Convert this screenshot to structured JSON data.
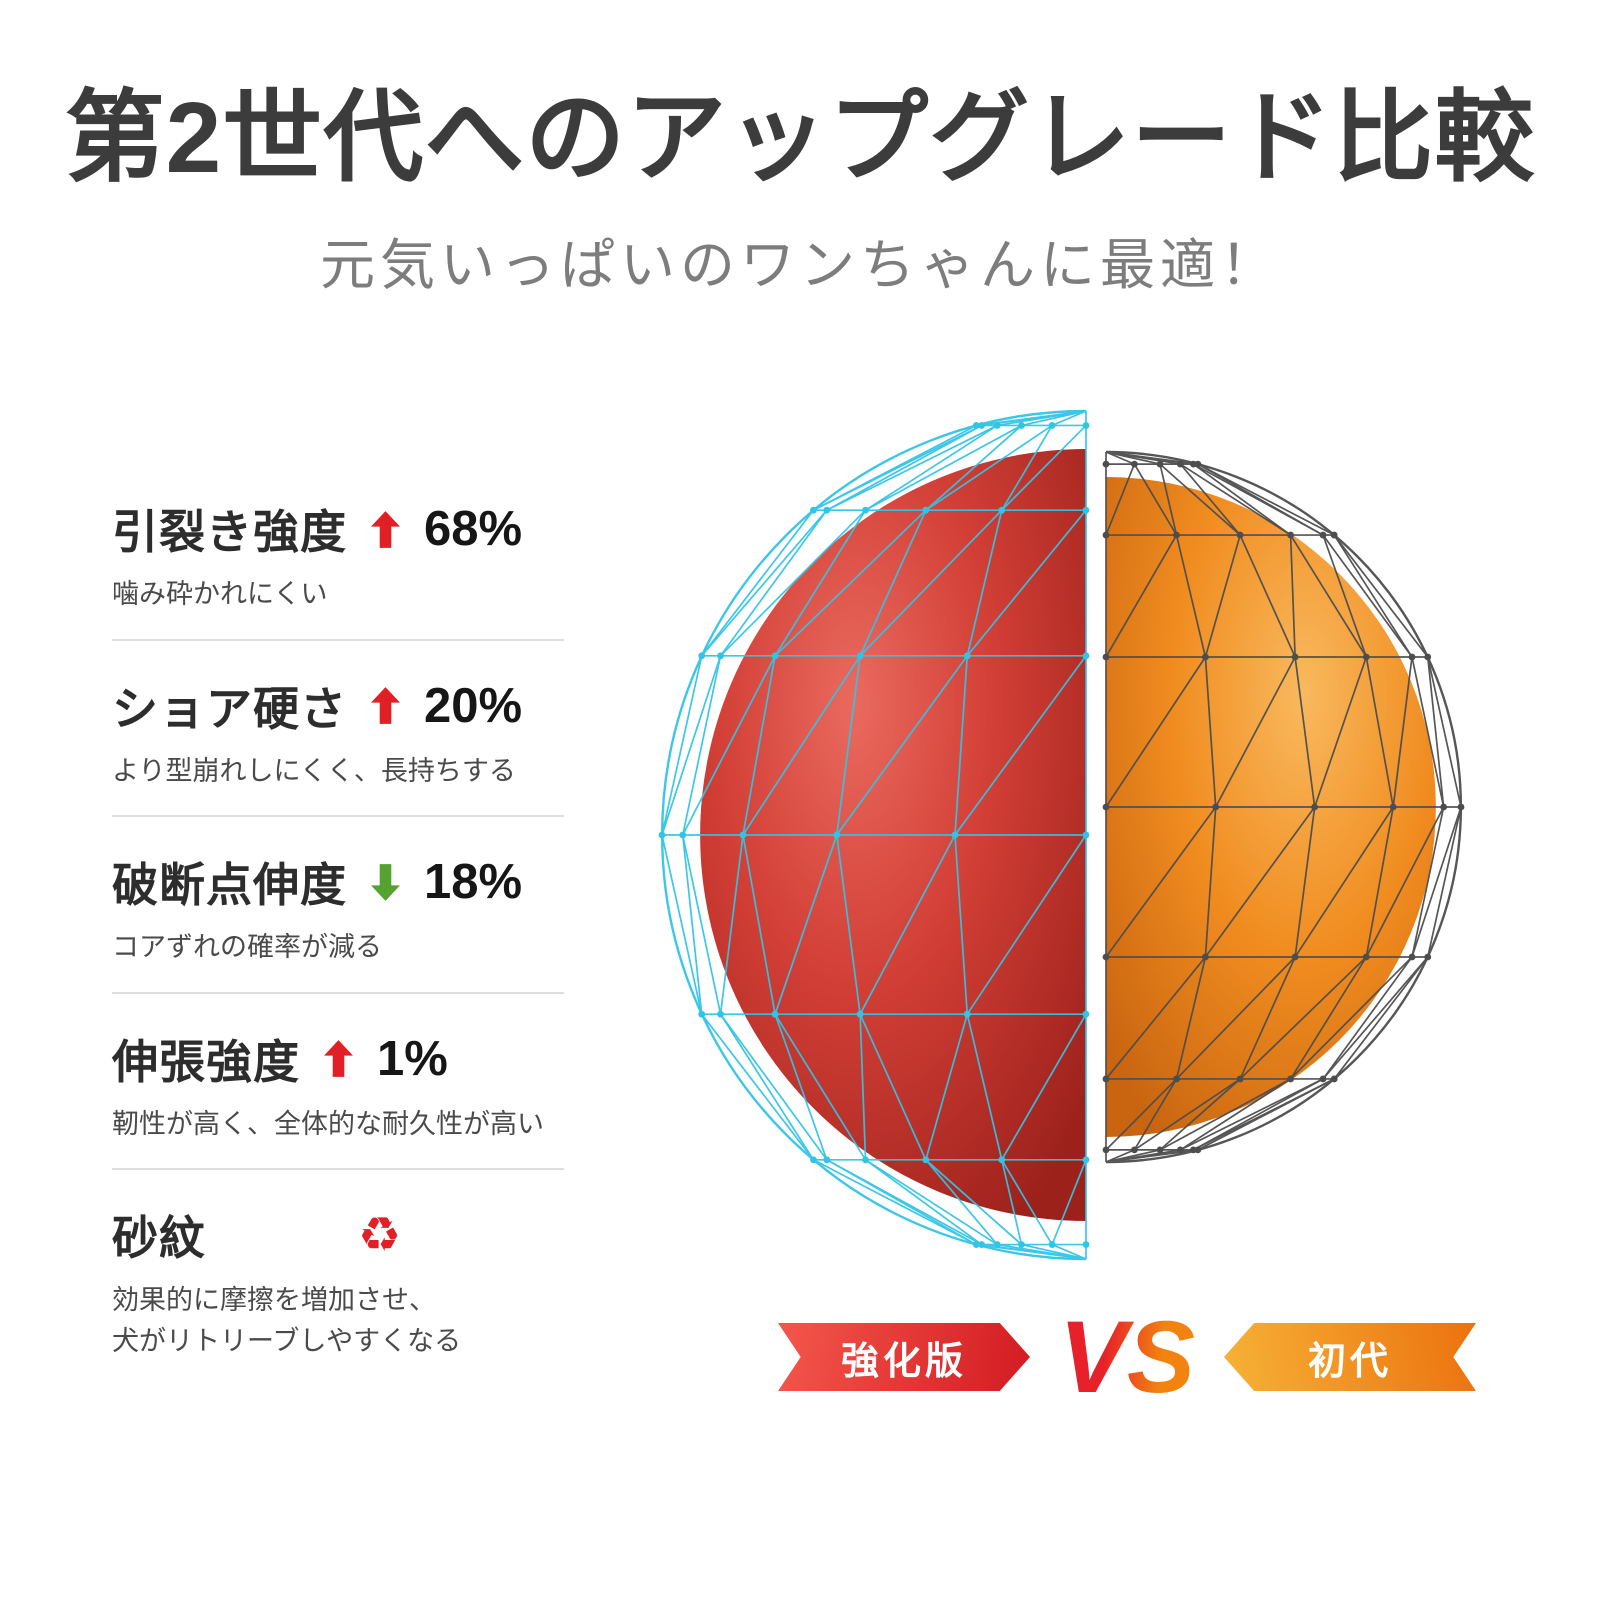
{
  "header": {
    "title": "第2世代へのアップグレード比較",
    "subtitle": "元気いっぱいのワンちゃんに最適！"
  },
  "specs": [
    {
      "label": "引裂き強度",
      "trend": "up",
      "value": "68%",
      "desc": "噛み砕かれにくい"
    },
    {
      "label": "ショア硬さ",
      "trend": "up",
      "value": "20%",
      "desc": "より型崩れしにくく、長持ちする"
    },
    {
      "label": "破断点伸度",
      "trend": "down",
      "value": "18%",
      "desc": "コアずれの確率が減る"
    },
    {
      "label": "伸張強度",
      "trend": "up",
      "value": "1%",
      "desc": "靭性が高く、全体的な耐久性が高い"
    },
    {
      "label": "砂紋",
      "trend": "recycle",
      "value": "",
      "desc": "効果的に摩擦を増加させ、\n犬がリトリーブしやすくなる"
    }
  ],
  "icons": {
    "recycle_glyph": "♻"
  },
  "comparison": {
    "left_label": "強化版",
    "vs_label": "VS",
    "right_label": "初代"
  },
  "colors": {
    "up_arrow": "#e01f26",
    "down_arrow": "#55a230",
    "wire_left": "#32c4e6",
    "wire_right": "#4d4d4d",
    "ball_left": "#d23f36",
    "ball_right": "#f08c1f"
  }
}
